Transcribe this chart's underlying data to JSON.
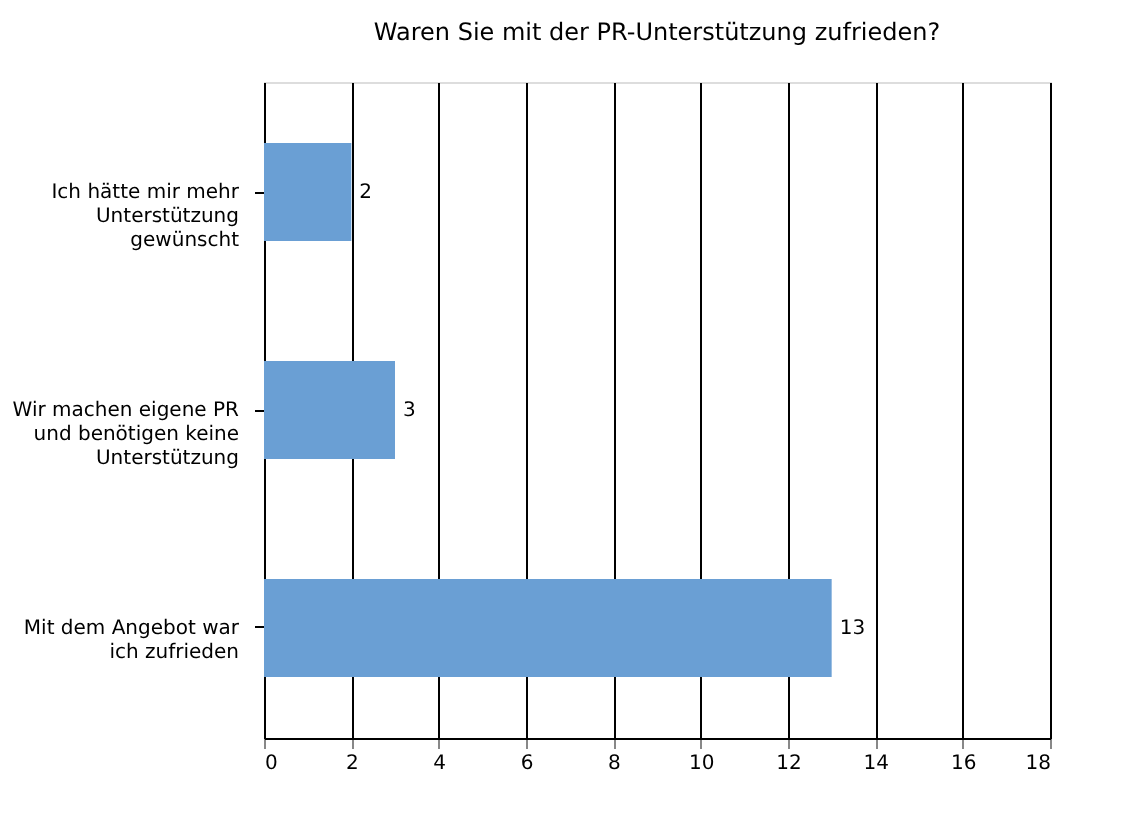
{
  "chart_data": {
    "type": "bar",
    "orientation": "horizontal",
    "title": "Waren Sie mit der PR-Unterstützung zufrieden?",
    "categories": [
      "Ich hätte mir mehr Unterstützung gewünscht",
      "Wir machen eigene PR und benötigen keine Unterstützung",
      "Mit dem Angebot war ich zufrieden"
    ],
    "values": [
      2,
      3,
      13
    ],
    "color": "#6a9fd4",
    "data_labels": true,
    "xlim": [
      0,
      18
    ],
    "xticks": [
      0,
      2,
      4,
      6,
      8,
      10,
      12,
      14,
      16,
      18
    ],
    "grid": "x"
  }
}
